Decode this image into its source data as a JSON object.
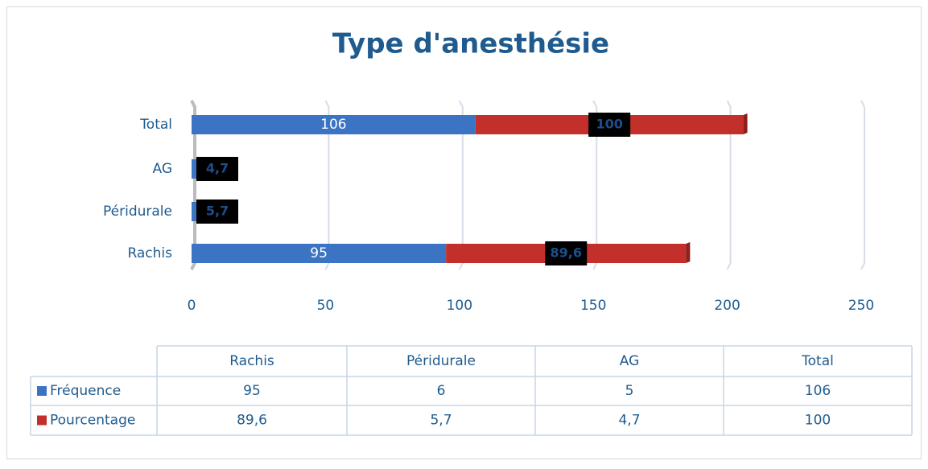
{
  "chart_data": {
    "type": "stacked-bar-horizontal",
    "title": "Type d'anesthésie",
    "categories": [
      "Rachis",
      "Péridurale",
      "AG",
      "Total"
    ],
    "series": [
      {
        "name": "Fréquence",
        "color": "#3b74c2",
        "values": [
          95,
          6,
          5,
          106
        ],
        "value_labels": [
          "95",
          null,
          null,
          "106"
        ]
      },
      {
        "name": "Pourcentage",
        "color": "#c3302c",
        "values": [
          89.6,
          5.7,
          4.7,
          100
        ],
        "value_labels": [
          "89,6",
          "5,7",
          "4,7",
          "100"
        ]
      }
    ],
    "xlim": [
      0,
      250
    ],
    "xticks": [
      0,
      50,
      100,
      150,
      200,
      250
    ],
    "grid": true,
    "data_table": true
  }
}
